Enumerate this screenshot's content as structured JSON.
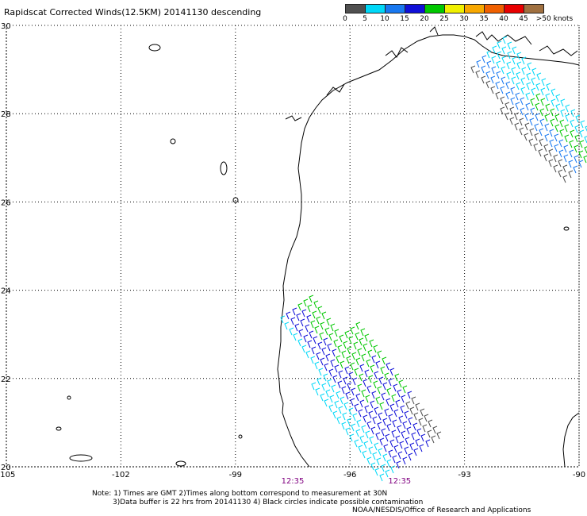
{
  "title": "Rapidscat Corrected Winds(12.5KM) 20141130 descending",
  "legend": {
    "labels": [
      "0",
      "5",
      "10",
      "15",
      "20",
      "25",
      "30",
      "35",
      "40",
      "45",
      ">50 knots"
    ],
    "colors": [
      "#505050",
      "#00d8f8",
      "#1878f0",
      "#1010d8",
      "#00c800",
      "#f0f000",
      "#f8a800",
      "#f06000",
      "#e80000",
      "#a07040",
      "#f000f0",
      "#a000d0",
      "#500080"
    ]
  },
  "map": {
    "lon_range": [
      -105,
      -90
    ],
    "lat_range": [
      20,
      30
    ],
    "x_ticks": [
      "-105",
      "-102",
      "-99",
      "-96",
      "-93",
      "-90"
    ],
    "y_ticks": [
      "20",
      "22",
      "24",
      "26",
      "28",
      "30"
    ],
    "time_labels": [
      {
        "text": "12:35",
        "lon": -97.5
      },
      {
        "text": "12:35",
        "lon": -94.7
      }
    ],
    "time_color": "#800080"
  },
  "notes": [
    "Note: 1) Times are GMT 2)Times along bottom correspond to measurement at 30N",
    "3)Data buffer is 22 hrs from 20141130 4) Black circles indicate possible contamination"
  ],
  "credit": "NOAA/NESDIS/Office of Research and Applications"
}
